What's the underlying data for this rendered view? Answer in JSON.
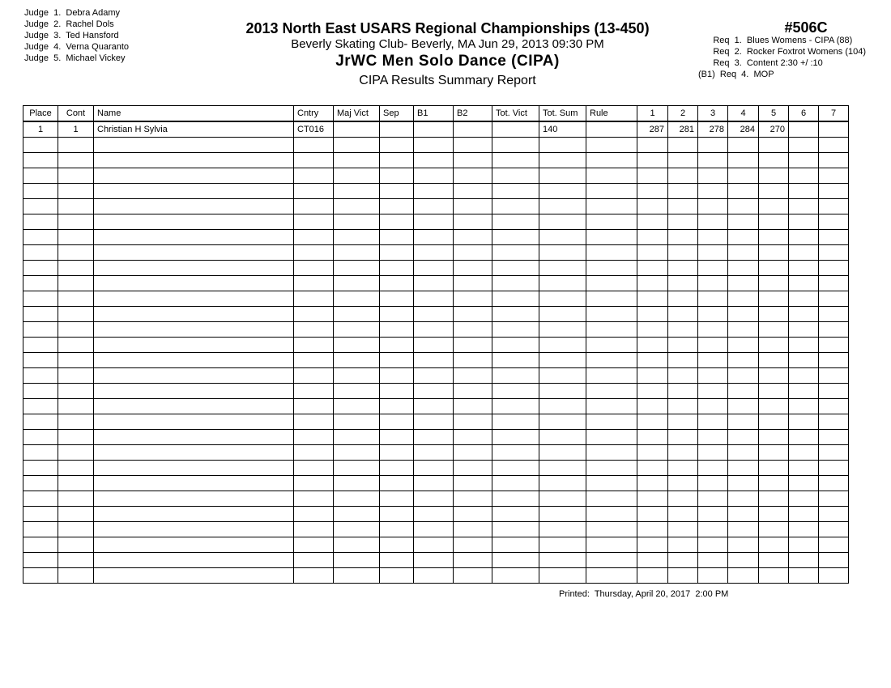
{
  "judges": [
    "Judge  1.  Debra Adamy",
    "Judge  2.  Rachel Dols",
    "Judge  3.  Ted Hansford",
    "Judge  4.  Verna Quaranto",
    "Judge  5.  Michael Vickey"
  ],
  "header": {
    "title": "2013 North East USARS Regional Championships (13-450)",
    "venue": "Beverly Skating Club- Beverly, MA  Jun 29, 2013  09:30 PM",
    "event": "JrWC Men Solo Dance (CIPA)",
    "report": "CIPA Results Summary Report",
    "event_number": "#506C"
  },
  "requirements": [
    "      Req  1.  Blues Womens - CIPA (88)",
    "      Req  2.  Rocker Foxtrot Womens (104)",
    "      Req  3.  Content 2:30 +/ :10",
    "(B1)  Req  4.  MOP"
  ],
  "table": {
    "columns": [
      "Place",
      "Cont",
      "Name",
      "Cntry",
      "Maj Vict",
      "Sep",
      "B1",
      "B2",
      "Tot. Vict",
      "Tot. Sum",
      "Rule",
      "1",
      "2",
      "3",
      "4",
      "5",
      "6",
      "7"
    ],
    "rows": [
      [
        "1",
        "1",
        "Christian H Sylvia",
        "CT016",
        "",
        "",
        "",
        "",
        "",
        "140",
        "",
        "287",
        "281",
        "278",
        "284",
        "270",
        "",
        ""
      ]
    ]
  },
  "footer": {
    "printed": "Printed:  Thursday, April 20, 2017  2:00 PM"
  }
}
